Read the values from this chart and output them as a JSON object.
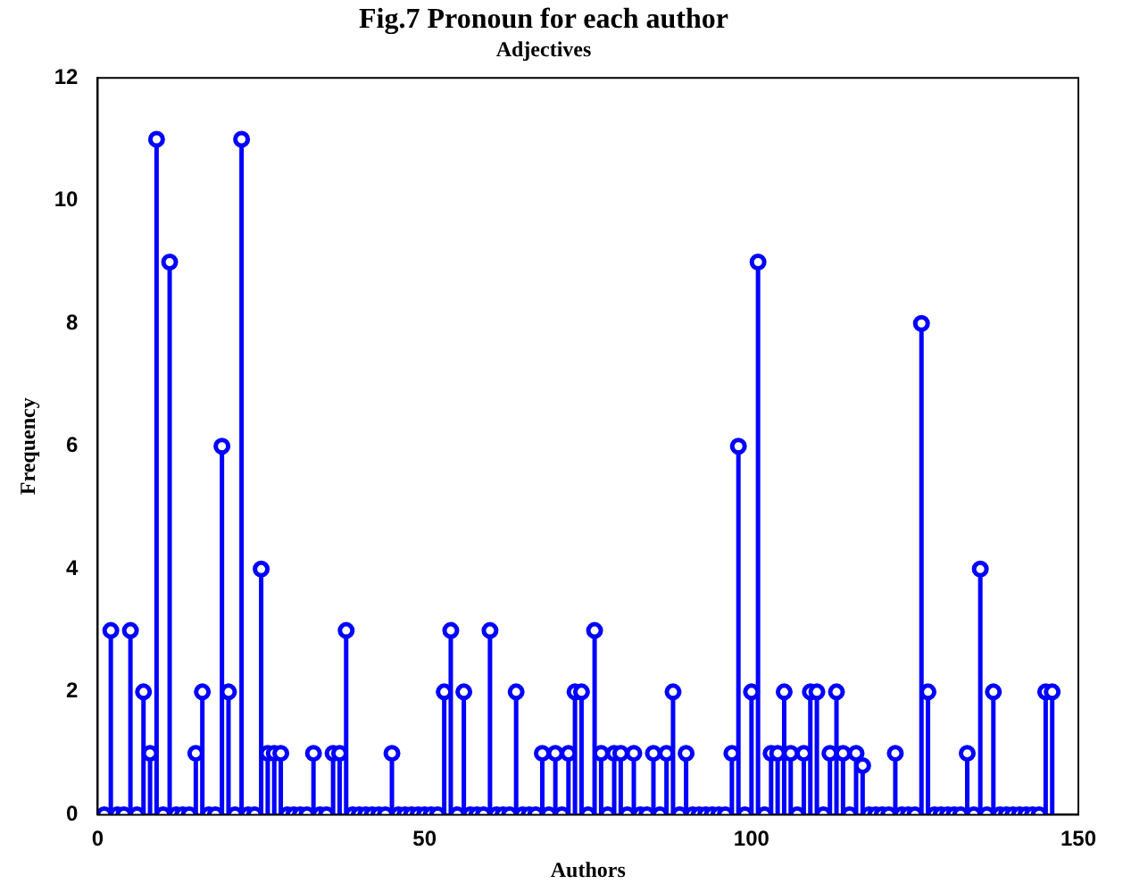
{
  "chart_data": {
    "type": "lollipop",
    "title": "Fig.7 Pronoun for each author",
    "subtitle": "Adjectives",
    "xlabel": "Authors",
    "ylabel": "Frequency",
    "x": [
      1,
      2,
      3,
      4,
      5,
      6,
      7,
      8,
      9,
      10,
      11,
      12,
      13,
      14,
      15,
      16,
      17,
      18,
      19,
      20,
      21,
      22,
      23,
      24,
      25,
      26,
      27,
      28,
      29,
      30,
      31,
      32,
      33,
      34,
      35,
      36,
      37,
      38,
      39,
      40,
      41,
      42,
      43,
      44,
      45,
      46,
      47,
      48,
      49,
      50,
      51,
      52,
      53,
      54,
      55,
      56,
      57,
      58,
      59,
      60,
      61,
      62,
      63,
      64,
      65,
      66,
      67,
      68,
      69,
      70,
      71,
      72,
      73,
      74,
      75,
      76,
      77,
      78,
      79,
      80,
      81,
      82,
      83,
      84,
      85,
      86,
      87,
      88,
      89,
      90,
      91,
      92,
      93,
      94,
      95,
      96,
      97,
      98,
      99,
      100,
      101,
      102,
      103,
      104,
      105,
      106,
      107,
      108,
      109,
      110,
      111,
      112,
      113,
      114,
      115,
      116,
      117,
      118,
      119,
      120,
      121,
      122,
      123,
      124,
      125,
      126,
      127,
      128,
      129,
      130,
      131,
      132,
      133,
      134,
      135,
      136,
      137,
      138,
      139,
      140,
      141,
      142,
      143,
      144,
      145,
      146
    ],
    "values": [
      0,
      3,
      0,
      0,
      3,
      0,
      2,
      1,
      11,
      0,
      9,
      0,
      0,
      0,
      1,
      2,
      0,
      0,
      6,
      2,
      0,
      11,
      0,
      0,
      4,
      1,
      1,
      1,
      0,
      0,
      0,
      0,
      1,
      0,
      0,
      1,
      1,
      3,
      0,
      0,
      0,
      0,
      0,
      0,
      1,
      0,
      0,
      0,
      0,
      0,
      0,
      0,
      2,
      3,
      0,
      2,
      0,
      0,
      0,
      3,
      0,
      0,
      0,
      2,
      0,
      0,
      0,
      1,
      0,
      1,
      0,
      1,
      2,
      2,
      0,
      3,
      1,
      0,
      1,
      1,
      0,
      1,
      0,
      0,
      1,
      0,
      1,
      2,
      0,
      1,
      0,
      0,
      0,
      0,
      0,
      0,
      1,
      6,
      0,
      2,
      9,
      0,
      1,
      1,
      2,
      1,
      0,
      1,
      2,
      2,
      0,
      1,
      2,
      1,
      0,
      1,
      0.8,
      0,
      0,
      0,
      0,
      1,
      0,
      0,
      0,
      8,
      2,
      0,
      0,
      0,
      0,
      0,
      1,
      0,
      4,
      0,
      2,
      0,
      0,
      0,
      0,
      0,
      0,
      0,
      2,
      2
    ],
    "color": "#0000ff",
    "marker": "circle",
    "xlim": [
      0,
      150
    ],
    "xticks": [
      0,
      50,
      100,
      150
    ],
    "ylim": [
      0,
      12
    ],
    "yticks": [
      0,
      2,
      4,
      6,
      8,
      10,
      12
    ],
    "grid": false
  }
}
